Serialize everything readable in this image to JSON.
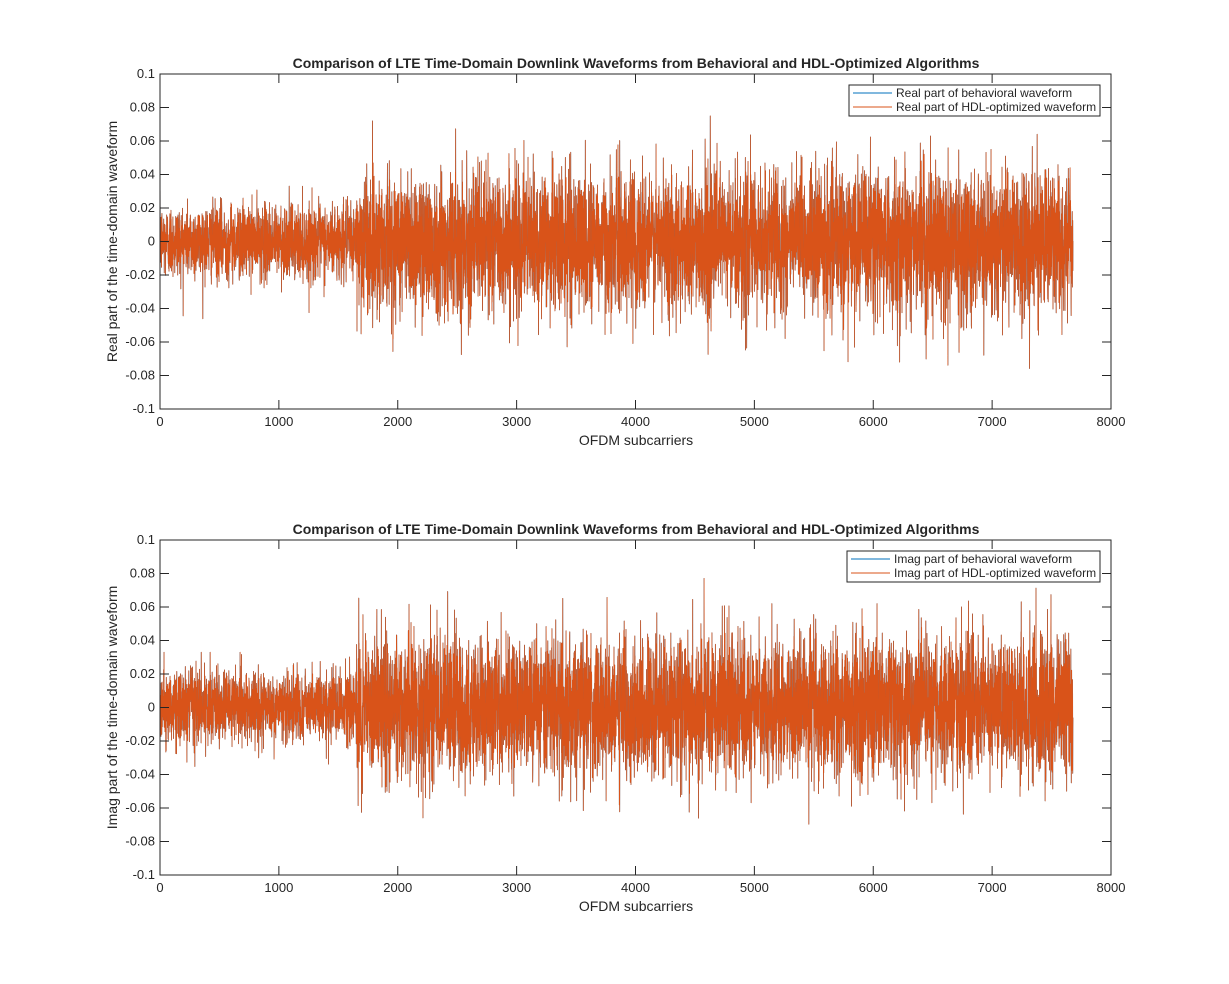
{
  "colors": {
    "series1": "#0072BD",
    "series2": "#D95319",
    "axis": "#262626",
    "background": "#ffffff"
  },
  "chart_data": [
    {
      "type": "line",
      "title": "Comparison of LTE Time-Domain Downlink Waveforms from Behavioral and HDL-Optimized Algorithms",
      "xlabel": "OFDM subcarriers",
      "ylabel": "Real part of the time-domain waveform",
      "xlim": [
        0,
        8000
      ],
      "ylim": [
        -0.1,
        0.1
      ],
      "xticks": [
        0,
        1000,
        2000,
        3000,
        4000,
        5000,
        6000,
        7000,
        8000
      ],
      "yticks": [
        -0.1,
        -0.08,
        -0.06,
        -0.04,
        -0.02,
        0,
        0.02,
        0.04,
        0.06,
        0.08,
        0.1
      ],
      "ytick_labels": [
        "-0.1",
        "-0.08",
        "-0.06",
        "-0.04",
        "-0.02",
        "0",
        "0.02",
        "0.04",
        "0.06",
        "0.08",
        "0.1"
      ],
      "grid": false,
      "legend": "top-right",
      "n_samples": 7680,
      "segments": [
        {
          "x_start": 0,
          "x_end": 1650,
          "approx_std": 0.011,
          "min": -0.048,
          "max": 0.045
        },
        {
          "x_start": 1650,
          "x_end": 7680,
          "approx_std": 0.021,
          "min": -0.096,
          "max": 0.075
        }
      ],
      "series": [
        {
          "name": "Real part of behavioral waveform",
          "color": "#0072BD"
        },
        {
          "name": "Real part of HDL-optimized waveform",
          "color": "#D95319"
        }
      ]
    },
    {
      "type": "line",
      "title": "Comparison of LTE Time-Domain Downlink Waveforms from Behavioral and HDL-Optimized Algorithms",
      "xlabel": "OFDM subcarriers",
      "ylabel": "Imag part of the time-domain waveform",
      "xlim": [
        0,
        8000
      ],
      "ylim": [
        -0.1,
        0.1
      ],
      "xticks": [
        0,
        1000,
        2000,
        3000,
        4000,
        5000,
        6000,
        7000,
        8000
      ],
      "yticks": [
        -0.1,
        -0.08,
        -0.06,
        -0.04,
        -0.02,
        0,
        0.02,
        0.04,
        0.06,
        0.08,
        0.1
      ],
      "ytick_labels": [
        "-0.1",
        "-0.08",
        "-0.06",
        "-0.04",
        "-0.02",
        "0",
        "0.02",
        "0.04",
        "0.06",
        "0.08",
        "0.1"
      ],
      "grid": false,
      "legend": "top-right",
      "n_samples": 7680,
      "segments": [
        {
          "x_start": 0,
          "x_end": 1650,
          "approx_std": 0.011,
          "min": -0.05,
          "max": 0.033
        },
        {
          "x_start": 1650,
          "x_end": 7680,
          "approx_std": 0.021,
          "min": -0.085,
          "max": 0.098
        }
      ],
      "series": [
        {
          "name": "Imag part of behavioral waveform",
          "color": "#0072BD"
        },
        {
          "name": "Imag part of HDL-optimized waveform",
          "color": "#D95319"
        }
      ]
    }
  ]
}
